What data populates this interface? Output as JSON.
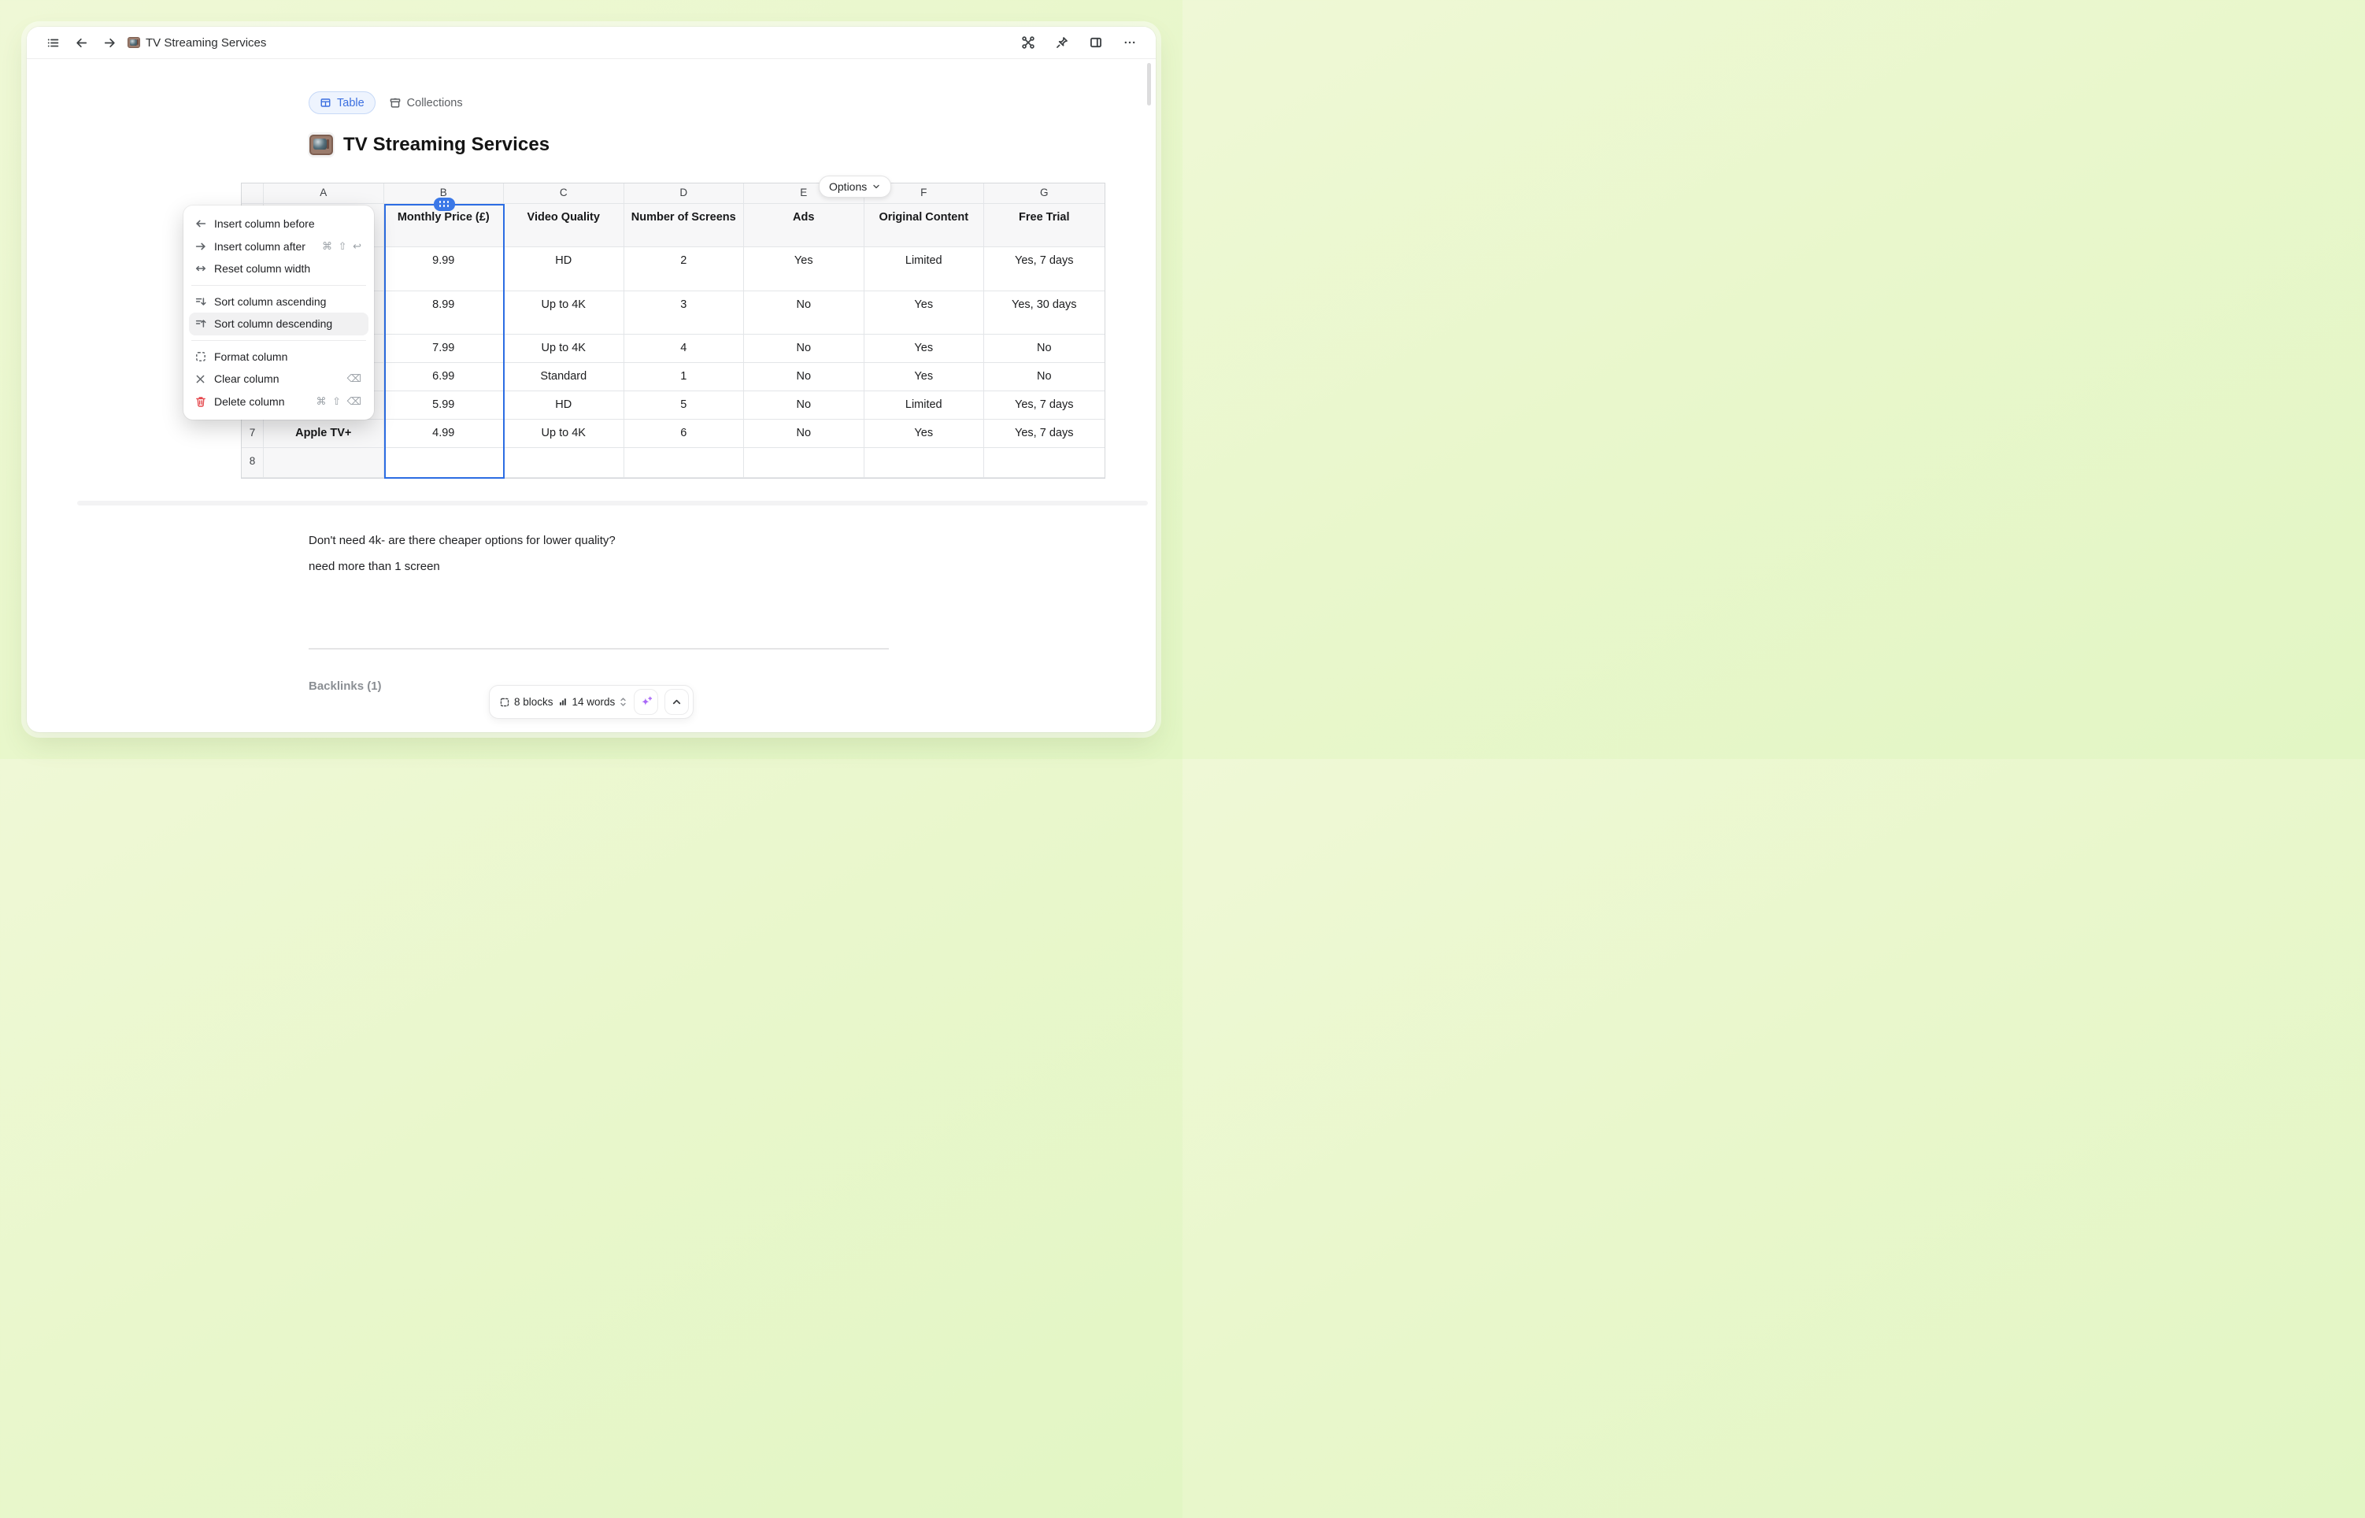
{
  "toolbar": {
    "emoji": "📺",
    "title": "TV Streaming Services"
  },
  "tabs": {
    "table": "Table",
    "collections": "Collections"
  },
  "page": {
    "emoji": "📺",
    "title": "TV Streaming Services"
  },
  "options": {
    "label": "Options"
  },
  "table": {
    "column_letters": [
      "A",
      "B",
      "C",
      "D",
      "E",
      "F",
      "G"
    ],
    "headers": [
      "",
      "Monthly Price (£)",
      "Video Quality",
      "Number of Screens",
      "Ads",
      "Original Content",
      "Free Trial"
    ],
    "rows": [
      {
        "num": "",
        "cells": [
          "",
          "9.99",
          "HD",
          "2",
          "Yes",
          "Limited",
          "Yes, 7 days"
        ]
      },
      {
        "num": "",
        "cells": [
          "",
          "8.99",
          "Up to 4K",
          "3",
          "No",
          "Yes",
          "Yes, 30 days"
        ]
      },
      {
        "num": "",
        "cells": [
          "",
          "7.99",
          "Up to 4K",
          "4",
          "No",
          "Yes",
          "No"
        ]
      },
      {
        "num": "",
        "cells": [
          "",
          "6.99",
          "Standard",
          "1",
          "No",
          "Yes",
          "No"
        ]
      },
      {
        "num": "",
        "cells": [
          "",
          "5.99",
          "HD",
          "5",
          "No",
          "Limited",
          "Yes, 7 days"
        ]
      },
      {
        "num": "7",
        "cells": [
          "Apple TV+",
          "4.99",
          "Up to 4K",
          "6",
          "No",
          "Yes",
          "Yes, 7 days"
        ]
      },
      {
        "num": "8",
        "cells": [
          "",
          "",
          "",
          "",
          "",
          "",
          ""
        ]
      }
    ],
    "selected_column": "B"
  },
  "context_menu": {
    "items": [
      {
        "icon": "insert-before-icon",
        "label": "Insert column before",
        "shortcut": ""
      },
      {
        "icon": "insert-after-icon",
        "label": "Insert column after",
        "shortcut": "⌘ ⇧ ↩"
      },
      {
        "icon": "reset-width-icon",
        "label": "Reset column width",
        "shortcut": ""
      },
      {
        "divider": true
      },
      {
        "icon": "sort-ascending-icon",
        "label": "Sort column ascending",
        "shortcut": ""
      },
      {
        "icon": "sort-descending-icon",
        "label": "Sort column descending",
        "shortcut": "",
        "highlighted": true
      },
      {
        "divider": true
      },
      {
        "icon": "format-icon",
        "label": "Format column",
        "shortcut": ""
      },
      {
        "icon": "clear-icon",
        "label": "Clear column",
        "shortcut": "⌫"
      },
      {
        "icon": "delete-icon",
        "label": "Delete column",
        "shortcut": "⌘ ⇧ ⌫",
        "danger": true
      }
    ]
  },
  "notes": {
    "line1": "Don't need 4k- are there cheaper options for lower quality?",
    "line2": "need more than 1 screen"
  },
  "backlinks": {
    "label": "Backlinks (1)"
  },
  "status_bar": {
    "blocks": "8 blocks",
    "words": "14 words"
  },
  "colors": {
    "accent_blue": "#2c6de3",
    "tab_blue": "#3b6fe0",
    "menu_highlight": "#f1f1f2",
    "delete_red": "#e5484d",
    "ai_purple": "#a968f7",
    "bg_green_top": "#eff8d6",
    "bg_green_bottom": "#e2f6c4"
  }
}
